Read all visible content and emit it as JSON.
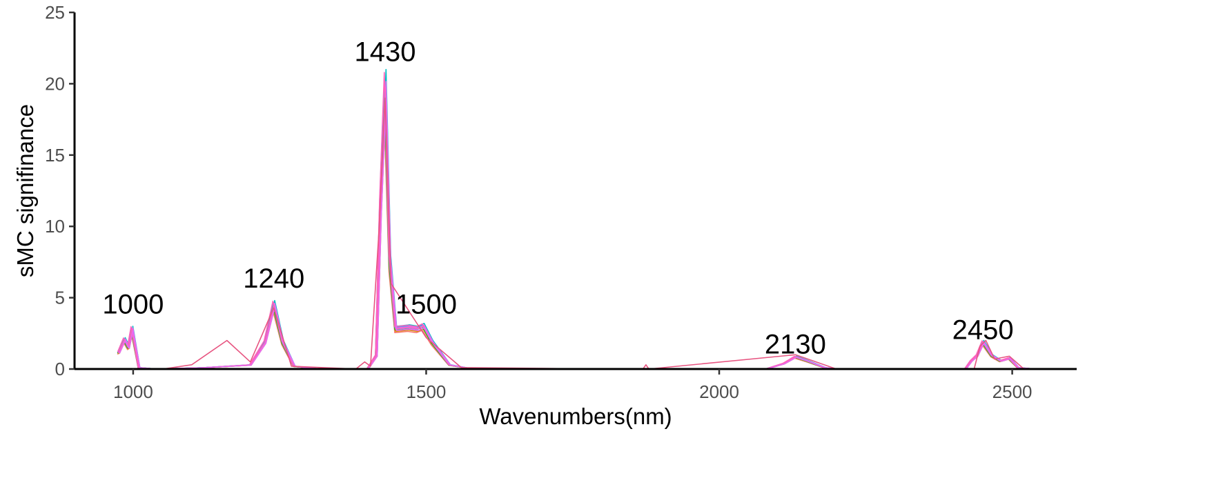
{
  "chart_data": {
    "type": "line",
    "title": "",
    "xlabel": "Wavenumbers(nm)",
    "ylabel": "sMC signifinance",
    "xlim": [
      900,
      2610
    ],
    "ylim": [
      0,
      25
    ],
    "xticks": [
      1000,
      1500,
      2000,
      2500
    ],
    "yticks": [
      0,
      5,
      10,
      15,
      20,
      25
    ],
    "grid": false,
    "legend": "none",
    "annotations": [
      {
        "text": "1000",
        "x": 1000,
        "y": 3.9
      },
      {
        "text": "1240",
        "x": 1240,
        "y": 5.7
      },
      {
        "text": "1430",
        "x": 1430,
        "y": 21.6
      },
      {
        "text": "1500",
        "x": 1500,
        "y": 3.9
      },
      {
        "text": "2130",
        "x": 2130,
        "y": 1.1
      },
      {
        "text": "2450",
        "x": 2450,
        "y": 2.1
      }
    ],
    "series": [
      {
        "color": "#F8766D",
        "scale": 0.85
      },
      {
        "color": "#D89000",
        "scale": 0.88
      },
      {
        "color": "#A3A500",
        "scale": 0.9
      },
      {
        "color": "#39B600",
        "scale": 0.92
      },
      {
        "color": "#00BF7D",
        "scale": 0.95
      },
      {
        "color": "#00BFC4",
        "scale": 1.0
      },
      {
        "color": "#00B0F6",
        "scale": 0.97
      },
      {
        "color": "#9590FF",
        "scale": 0.93
      },
      {
        "color": "#E76BF3",
        "scale": 0.96
      },
      {
        "color": "#FF62BC",
        "scale": 0.99
      },
      {
        "color": "#FF62BC",
        "scale": 0.94
      },
      {
        "color": "#E76BF3",
        "scale": 0.9
      }
    ],
    "base_profile": [
      [
        975,
        1.2
      ],
      [
        985,
        2.2
      ],
      [
        992,
        1.6
      ],
      [
        998,
        3.0
      ],
      [
        1003,
        1.8
      ],
      [
        1010,
        0.1
      ],
      [
        1040,
        0.0
      ],
      [
        1120,
        0.1
      ],
      [
        1200,
        0.3
      ],
      [
        1225,
        2.0
      ],
      [
        1240,
        4.8
      ],
      [
        1255,
        2.0
      ],
      [
        1275,
        0.2
      ],
      [
        1320,
        0.0
      ],
      [
        1400,
        0.0
      ],
      [
        1415,
        1.0
      ],
      [
        1422,
        12.0
      ],
      [
        1430,
        21.0
      ],
      [
        1438,
        8.0
      ],
      [
        1448,
        3.0
      ],
      [
        1470,
        3.1
      ],
      [
        1485,
        3.0
      ],
      [
        1495,
        3.2
      ],
      [
        1510,
        2.0
      ],
      [
        1540,
        0.3
      ],
      [
        1580,
        0.0
      ],
      [
        2080,
        0.0
      ],
      [
        2110,
        0.4
      ],
      [
        2130,
        0.9
      ],
      [
        2150,
        0.6
      ],
      [
        2180,
        0.1
      ],
      [
        2200,
        0.0
      ],
      [
        2420,
        0.0
      ],
      [
        2430,
        0.6
      ],
      [
        2440,
        1.0
      ],
      [
        2450,
        2.0
      ],
      [
        2465,
        1.0
      ],
      [
        2480,
        0.6
      ],
      [
        2495,
        0.8
      ],
      [
        2510,
        0.1
      ],
      [
        2540,
        0.0
      ]
    ],
    "outlier_series": {
      "color": "#E75480",
      "points": [
        [
          1050,
          0.0
        ],
        [
          1100,
          0.3
        ],
        [
          1160,
          2.0
        ],
        [
          1200,
          0.5
        ],
        [
          1240,
          4.3
        ],
        [
          1270,
          0.2
        ],
        [
          1380,
          0.0
        ],
        [
          1395,
          0.5
        ],
        [
          1405,
          0.2
        ],
        [
          1420,
          10.0
        ],
        [
          1430,
          19.0
        ],
        [
          1440,
          6.0
        ],
        [
          1500,
          2.2
        ],
        [
          1560,
          0.1
        ],
        [
          1700,
          0.05
        ],
        [
          1800,
          0.0
        ],
        [
          1870,
          0.0
        ],
        [
          1875,
          0.3
        ],
        [
          1880,
          0.0
        ],
        [
          2130,
          1.0
        ],
        [
          2200,
          0.0
        ],
        [
          2245,
          0.0
        ],
        [
          2435,
          0.0
        ],
        [
          2445,
          1.6
        ],
        [
          2455,
          2.0
        ],
        [
          2470,
          0.7
        ],
        [
          2495,
          0.9
        ],
        [
          2520,
          0.0
        ]
      ]
    }
  }
}
